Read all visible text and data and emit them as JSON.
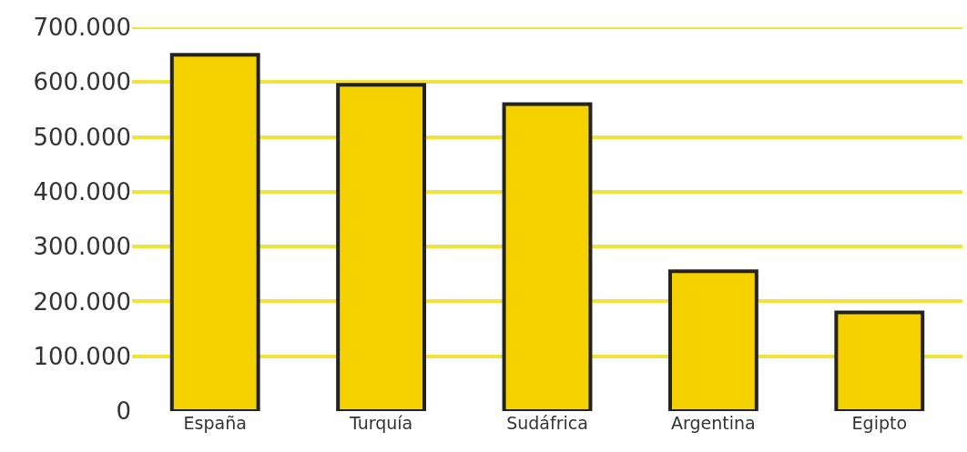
{
  "chart_data": {
    "type": "bar",
    "categories": [
      "España",
      "Turquía",
      "Sudáfrica",
      "Argentina",
      "Egipto"
    ],
    "values": [
      650000,
      595000,
      560000,
      255000,
      180000
    ],
    "color": "#f5d100",
    "ylim": [
      0,
      700000
    ],
    "yticks": [
      {
        "value": 0,
        "label": "0"
      },
      {
        "value": 100000,
        "label": "100.000"
      },
      {
        "value": 200000,
        "label": "200.000"
      },
      {
        "value": 300000,
        "label": "300.000"
      },
      {
        "value": 400000,
        "label": "400.000"
      },
      {
        "value": 500000,
        "label": "500.000"
      },
      {
        "value": 600000,
        "label": "600.000"
      },
      {
        "value": 700000,
        "label": "700.000"
      }
    ],
    "grid": "y"
  }
}
